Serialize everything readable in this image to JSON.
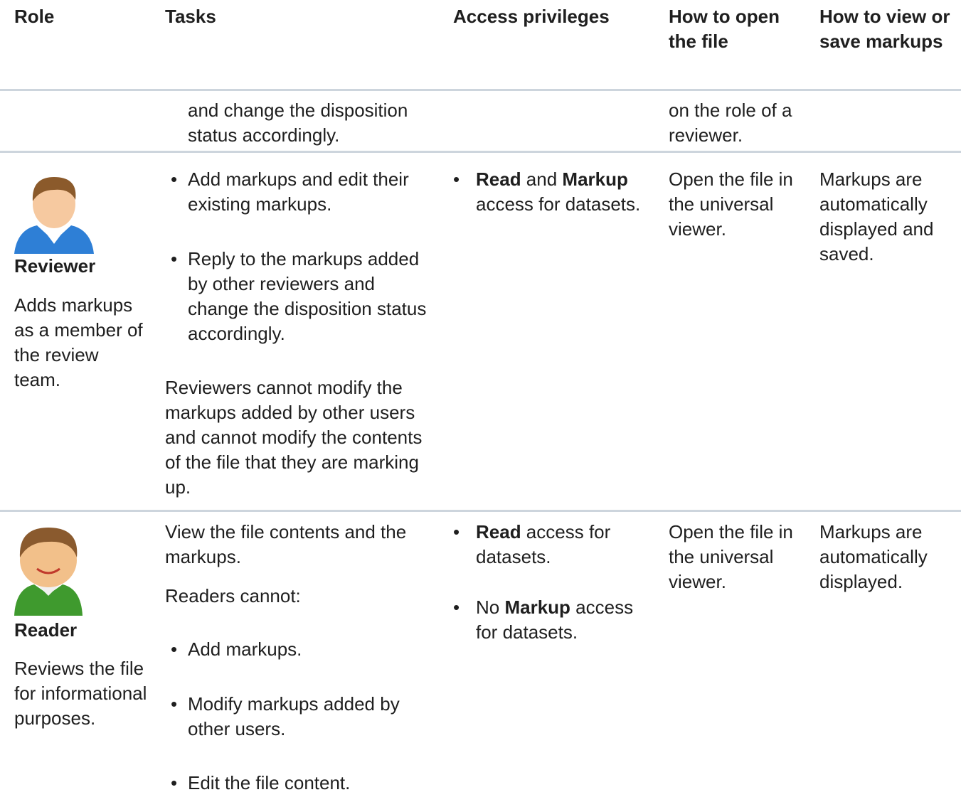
{
  "header": {
    "role": "Role",
    "tasks": "Tasks",
    "access": "Access privileges",
    "open": "How to open the file",
    "view": "How to view or save markups"
  },
  "rows": [
    {
      "tasks_continued": "and change the disposition status accordingly.",
      "open": "on the role of a reviewer."
    },
    {
      "role": {
        "name": "Reviewer",
        "description": "Adds markups as a member of the review team."
      },
      "tasks": {
        "bullets": [
          "Add markups and edit their existing markups.",
          "Reply to the markups added by other reviewers and change the disposition status accordingly."
        ],
        "note": "Reviewers cannot modify the markups added by other users and cannot modify the contents of the file that they are marking up."
      },
      "access": [
        [
          {
            "text": "Read",
            "bold": true
          },
          {
            "text": " and "
          },
          {
            "text": "Markup",
            "bold": true
          },
          {
            "text": " access for datasets."
          }
        ]
      ],
      "open": "Open the file in the universal viewer.",
      "view": "Markups are automatically displayed and saved."
    },
    {
      "role": {
        "name": "Reader",
        "description": "Reviews the file for informational purposes."
      },
      "tasks": {
        "intro": "View the file contents and the markups.",
        "lead": "Readers cannot:",
        "bullets": [
          "Add markups.",
          "Modify markups added by other users.",
          "Edit the file content."
        ]
      },
      "access": [
        [
          {
            "text": "Read",
            "bold": true
          },
          {
            "text": " access for datasets."
          }
        ],
        [
          {
            "text": "No "
          },
          {
            "text": "Markup",
            "bold": true
          },
          {
            "text": " access for datasets."
          }
        ]
      ],
      "open": "Open the file in the universal viewer.",
      "view": "Markups are automatically displayed."
    }
  ]
}
